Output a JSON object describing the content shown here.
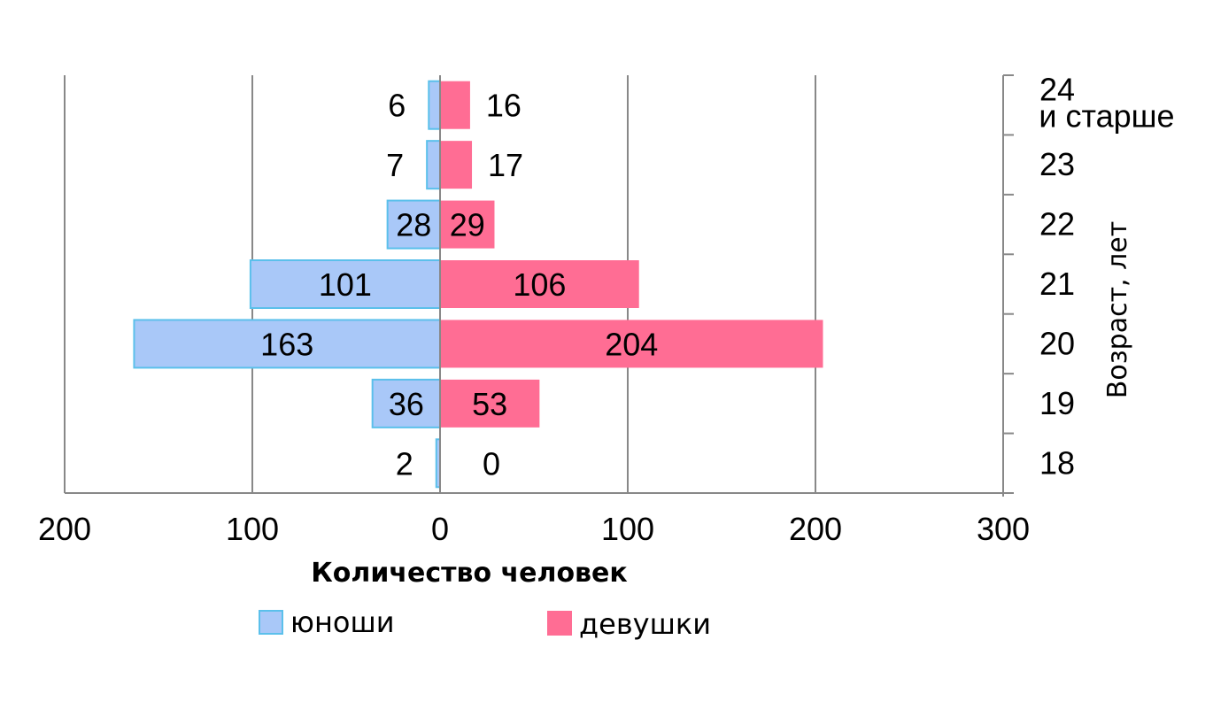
{
  "chart_data": {
    "type": "bar",
    "orientation": "horizontal",
    "layout": "population-pyramid",
    "categories": [
      "18",
      "19",
      "20",
      "21",
      "22",
      "23",
      "24\nи старше"
    ],
    "series": [
      {
        "name": "юноши",
        "values": [
          2,
          36,
          163,
          101,
          28,
          7,
          6
        ],
        "color": "#a9c8f8",
        "border": "#5bc0eb",
        "direction": "left"
      },
      {
        "name": "девушки",
        "values": [
          0,
          53,
          204,
          106,
          29,
          17,
          16
        ],
        "color": "#ff6d94",
        "direction": "right"
      }
    ],
    "xlabel": "Количество человек",
    "ylabel": "Возраст, лет",
    "xlim": [
      -200,
      300
    ],
    "xticks": [
      -200,
      -100,
      0,
      100,
      200,
      300
    ],
    "xtick_labels": [
      "200",
      "100",
      "0",
      "100",
      "200",
      "300"
    ],
    "grid": "vertical",
    "legend_position": "bottom",
    "axis_color": "#888888"
  }
}
